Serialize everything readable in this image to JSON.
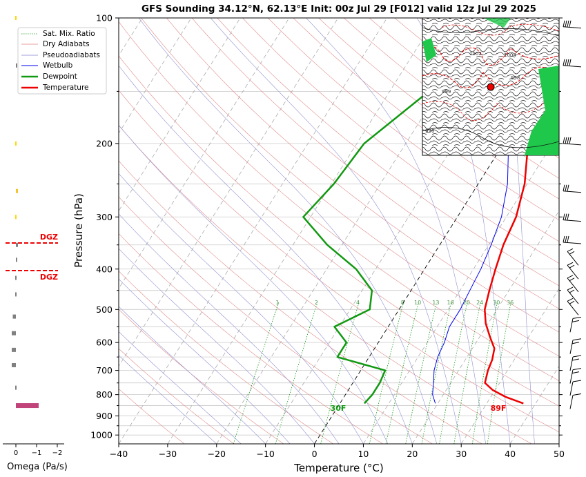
{
  "chart_data": {
    "type": "line",
    "title": "GFS Sounding 34.12°N, 62.13°E Init: 00z Jul 29 [F012] valid 12z Jul 29 2025",
    "xlabel": "Temperature (°C)",
    "ylabel": "Pressure (hPa)",
    "xlim": [
      -40,
      50
    ],
    "ylim": [
      1050,
      100
    ],
    "y_scale": "log",
    "skew": "skew-T",
    "x_ticks": [
      "−40",
      "−30",
      "−20",
      "−10",
      "0",
      "10",
      "20",
      "30",
      "40",
      "50"
    ],
    "y_ticks": [
      {
        "p": 100,
        "label": "100"
      },
      {
        "p": 200,
        "label": "200"
      },
      {
        "p": 300,
        "label": "300"
      },
      {
        "p": 400,
        "label": "400"
      },
      {
        "p": 500,
        "label": "500"
      },
      {
        "p": 600,
        "label": "600"
      },
      {
        "p": 700,
        "label": "700"
      },
      {
        "p": 800,
        "label": "800"
      },
      {
        "p": 900,
        "label": "900"
      },
      {
        "p": 1000,
        "label": "1000"
      }
    ],
    "grid": true,
    "legend_position": "top-left",
    "legend": [
      "Sat. Mix. Ratio",
      "Dry Adiabats",
      "Pseudoadiabats",
      "Wetbulb",
      "Dewpoint",
      "Temperature"
    ],
    "series": [
      {
        "name": "Temperature",
        "color": "#ee0000",
        "p": [
          840,
          810,
          780,
          750,
          700,
          660,
          620,
          580,
          540,
          500,
          450,
          400,
          350,
          300,
          250,
          200,
          150,
          130,
          100
        ],
        "values": [
          37.5,
          33,
          29.5,
          27,
          26,
          25.5,
          24.5,
          22,
          19.5,
          17.5,
          16,
          14.5,
          13,
          12,
          9.5,
          5,
          -4,
          -7,
          -11.5
        ]
      },
      {
        "name": "Dewpoint",
        "color": "#119911",
        "p": [
          840,
          800,
          750,
          700,
          650,
          600,
          550,
          500,
          450,
          400,
          350,
          300,
          250,
          200,
          150,
          100
        ],
        "values": [
          5,
          5.5,
          5.5,
          5,
          -6.5,
          -6.5,
          -11,
          -6,
          -8,
          -14,
          -23,
          -31.5,
          -29.5,
          -28.5,
          -22,
          -16.5
        ]
      },
      {
        "name": "Wetbulb",
        "color": "#0000ee",
        "p": [
          840,
          800,
          750,
          700,
          650,
          600,
          550,
          500,
          450,
          400,
          350,
          300,
          250,
          200,
          150,
          130
        ],
        "values": [
          19.5,
          17.8,
          16.5,
          15,
          14,
          13.5,
          12.5,
          12.5,
          12,
          11.5,
          10.5,
          9,
          6,
          1,
          -9,
          -11.5
        ]
      }
    ],
    "annotations": [
      {
        "text": "30F",
        "color": "#119911"
      },
      {
        "text": "89F",
        "color": "#ee0000"
      },
      {
        "text": "DGZ",
        "color": "#ee0000"
      },
      {
        "text": "DGZ",
        "color": "#ee0000"
      }
    ],
    "mixing_ratio_labels": [
      "1",
      "2",
      "4",
      "8",
      "10",
      "13",
      "16",
      "20",
      "24",
      "30",
      "36"
    ],
    "omega_panel": {
      "xlabel": "Omega (Pa/s)",
      "ticks": [
        "0",
        "−1",
        "−2"
      ],
      "p": [
        100,
        130,
        200,
        260,
        300,
        350,
        380,
        420,
        460,
        520,
        570,
        625,
        680,
        770,
        850
      ],
      "values": [
        0.02,
        0.05,
        0.02,
        0.1,
        0.02,
        0.1,
        0.05,
        0.02,
        0.02,
        -0.15,
        -0.2,
        -0.2,
        -0.2,
        0.02,
        1.1
      ],
      "colors": [
        "#ffd700",
        "#808080",
        "#ffd700",
        "#f4c430",
        "#ffd700",
        "#808080",
        "#808080",
        "#808080",
        "#808080",
        "#808080",
        "#808080",
        "#808080",
        "#808080",
        "#808080",
        "#c0437a"
      ]
    },
    "inset_map_label_samples": [
      "1002",
      "1004",
      "999",
      "996",
      "998"
    ]
  }
}
